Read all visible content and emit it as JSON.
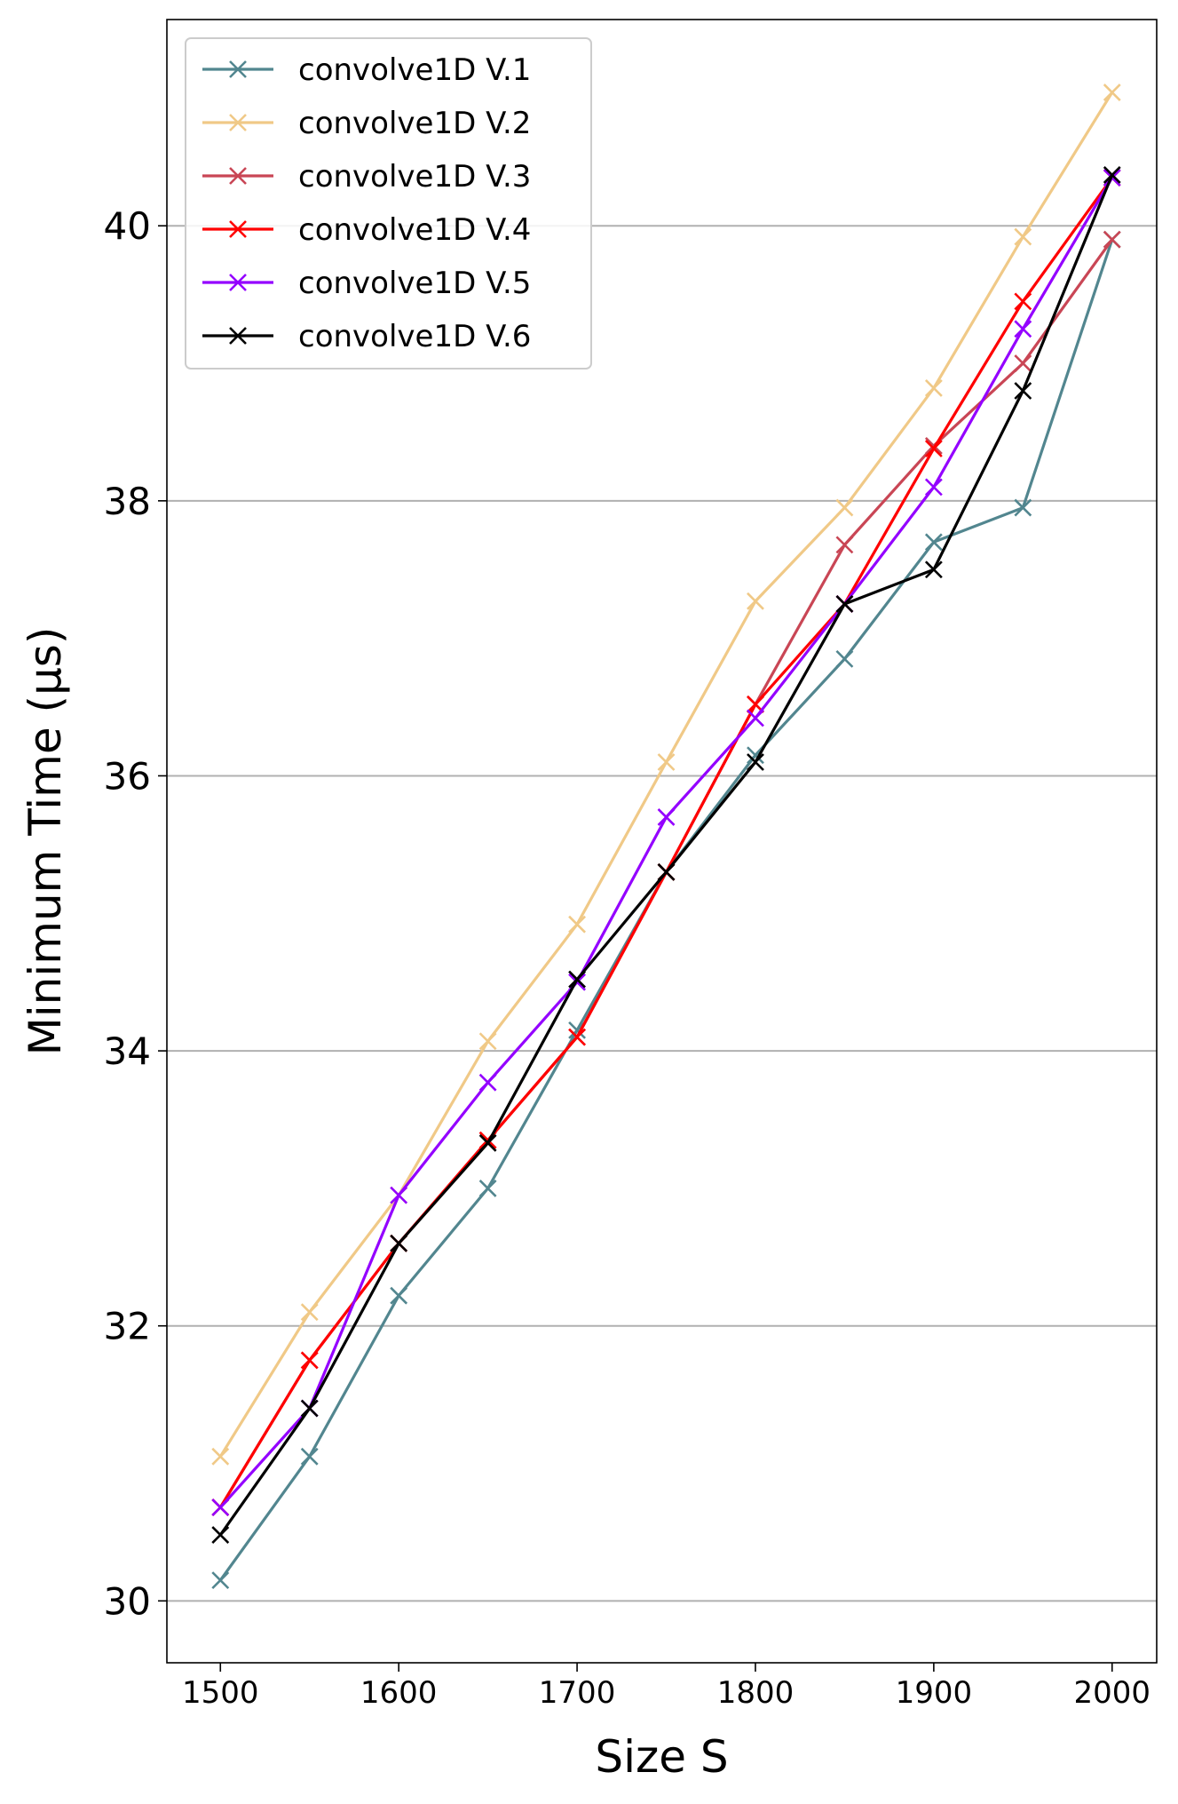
{
  "chart_data": {
    "type": "line",
    "title": "",
    "xlabel": "Size S",
    "ylabel": "Minimum Time (µs)",
    "xlim": [
      1470,
      2025
    ],
    "ylim": [
      29.55,
      41.5
    ],
    "x": [
      1500,
      1550,
      1600,
      1650,
      1700,
      1750,
      1800,
      1850,
      1900,
      1950,
      2000
    ],
    "x_ticks": [
      "1500",
      "1600",
      "1700",
      "1800",
      "1900",
      "2000"
    ],
    "y_ticks": [
      "30",
      "32",
      "34",
      "36",
      "38",
      "40"
    ],
    "grid": "horizontal",
    "legend_position": "top-left",
    "marker": "x",
    "series": [
      {
        "name": "convolve1D V.1",
        "color": "#52868f",
        "values": [
          30.15,
          31.05,
          32.22,
          33.0,
          34.15,
          35.3,
          36.15,
          36.85,
          37.7,
          37.95,
          39.9
        ]
      },
      {
        "name": "convolve1D V.2",
        "color": "#f0c987",
        "values": [
          31.05,
          32.1,
          32.95,
          34.07,
          34.92,
          36.1,
          37.27,
          37.95,
          38.82,
          39.92,
          40.97
        ]
      },
      {
        "name": "convolve1D V.3",
        "color": "#c94655",
        "values": [
          30.68,
          31.75,
          32.6,
          33.35,
          34.1,
          35.3,
          36.52,
          37.68,
          38.4,
          39.0,
          39.9
        ]
      },
      {
        "name": "convolve1D V.4",
        "color": "#ff0000",
        "values": [
          30.68,
          31.75,
          32.6,
          33.35,
          34.1,
          35.3,
          36.52,
          37.25,
          38.38,
          39.45,
          40.35
        ]
      },
      {
        "name": "convolve1D V.5",
        "color": "#9400ff",
        "values": [
          30.68,
          31.4,
          32.95,
          33.77,
          34.5,
          35.7,
          36.42,
          37.25,
          38.1,
          39.25,
          40.35
        ]
      },
      {
        "name": "convolve1D V.6",
        "color": "#000000",
        "values": [
          30.48,
          31.4,
          32.6,
          33.33,
          34.52,
          35.3,
          36.1,
          37.25,
          37.5,
          38.8,
          40.37
        ]
      }
    ]
  }
}
